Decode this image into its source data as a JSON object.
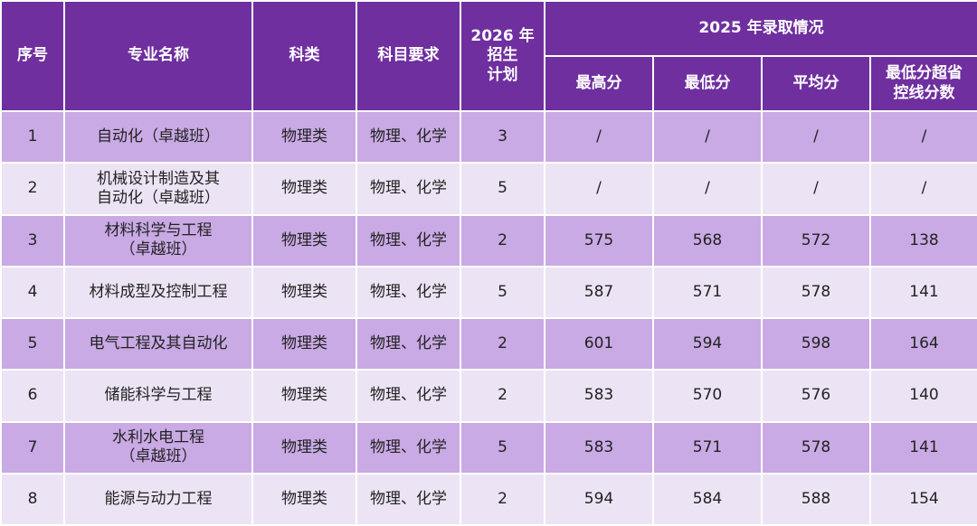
{
  "header": {
    "columns": [
      "序号",
      "专业名称",
      "科类",
      "科目要求",
      "2026 年\n招生\n计划"
    ],
    "group": "2025 年录取情况",
    "sub_columns": [
      "最高分",
      "最低分",
      "平均分",
      "最低分超省\n控线分数"
    ]
  },
  "table": {
    "rows": [
      [
        1,
        "自动化（卓越班）",
        "物理类",
        "物理、化学",
        3,
        "/",
        "/",
        "/",
        "/"
      ],
      [
        2,
        "机械设计制造及其\n自动化（卓越班）",
        "物理类",
        "物理、化学",
        5,
        "/",
        "/",
        "/",
        "/"
      ],
      [
        3,
        "材料科学与工程\n（卓越班）",
        "物理类",
        "物理、化学",
        2,
        575,
        568,
        572,
        138
      ],
      [
        4,
        "材料成型及控制工程",
        "物理类",
        "物理、化学",
        5,
        587,
        571,
        578,
        141
      ],
      [
        5,
        "电气工程及其自动化",
        "物理类",
        "物理、化学",
        2,
        601,
        594,
        598,
        164
      ],
      [
        6,
        "储能科学与工程",
        "物理类",
        "物理、化学",
        2,
        583,
        570,
        576,
        140
      ],
      [
        7,
        "水利水电工程\n（卓越班）",
        "物理类",
        "物理、化学",
        5,
        583,
        571,
        578,
        141
      ],
      [
        8,
        "能源与动力工程",
        "物理类",
        "物理、化学",
        2,
        594,
        584,
        588,
        154
      ]
    ]
  }
}
